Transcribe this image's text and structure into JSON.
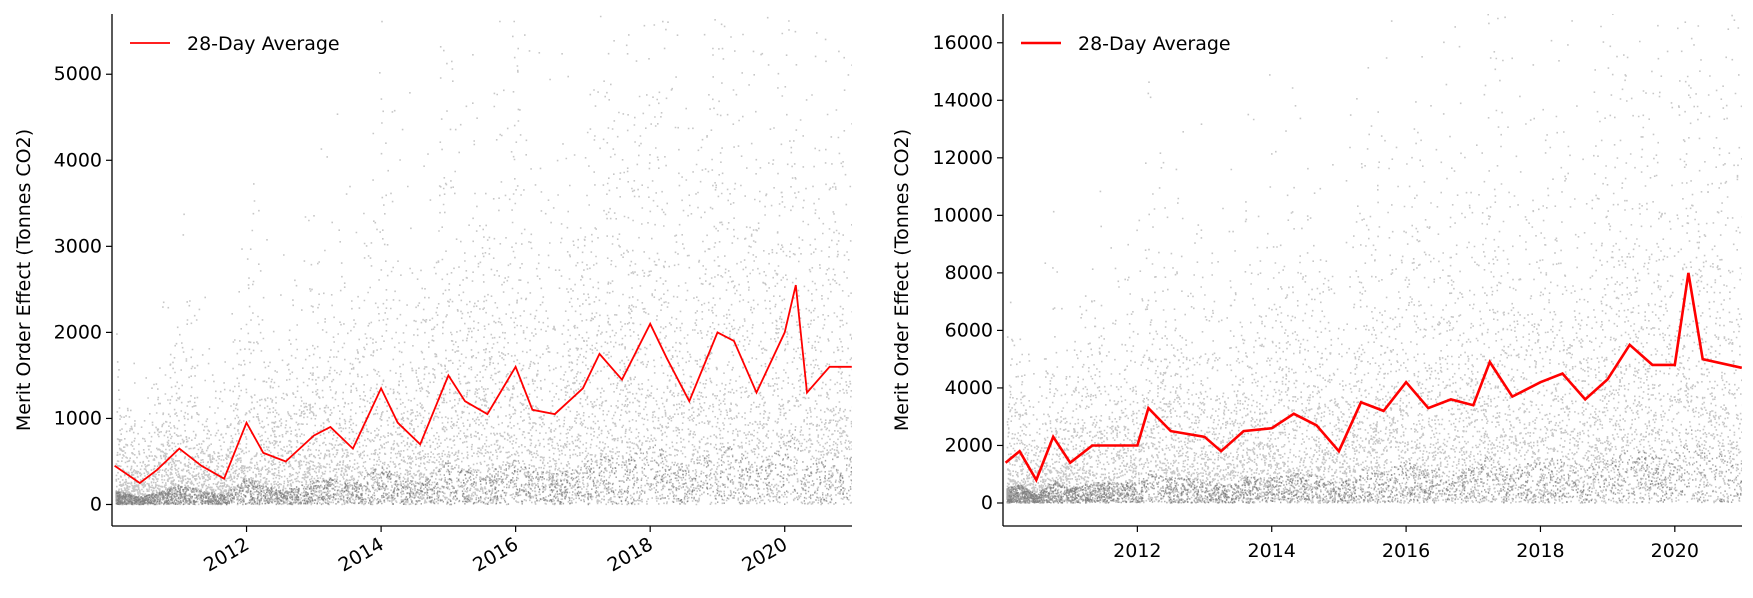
{
  "chart_data": [
    {
      "type": "scatter",
      "ylabel": "Merit Order Effect (Tonnes CO2)",
      "xlim": [
        "2010-01-01",
        "2021-01-01"
      ],
      "ylim": [
        -250,
        5700
      ],
      "xticks": [
        "2012",
        "2014",
        "2016",
        "2018",
        "2020"
      ],
      "yticks": [
        0,
        1000,
        2000,
        3000,
        4000,
        5000
      ],
      "x_tick_labels_rotated": true,
      "legend": {
        "placement": "top-left",
        "label": "28-Day Average"
      },
      "colors": {
        "scatter": "#000000",
        "average": "#ff0000"
      },
      "series": [
        {
          "name": "28-Day Average",
          "x": [
            "2010-01-15",
            "2010-06-01",
            "2010-09-01",
            "2011-01-01",
            "2011-05-01",
            "2011-09-01",
            "2012-01-01",
            "2012-04-01",
            "2012-08-01",
            "2013-01-01",
            "2013-04-01",
            "2013-08-01",
            "2014-01-01",
            "2014-04-01",
            "2014-08-01",
            "2015-01-01",
            "2015-04-01",
            "2015-08-01",
            "2016-01-01",
            "2016-04-01",
            "2016-08-01",
            "2017-01-01",
            "2017-04-01",
            "2017-08-01",
            "2018-01-01",
            "2018-04-01",
            "2018-08-01",
            "2019-01-01",
            "2019-04-01",
            "2019-08-01",
            "2020-01-01",
            "2020-03-01",
            "2020-05-01",
            "2020-09-01",
            "2020-12-31"
          ],
          "y": [
            450,
            250,
            400,
            650,
            450,
            300,
            950,
            600,
            500,
            800,
            900,
            650,
            1350,
            950,
            700,
            1500,
            1200,
            1050,
            1600,
            1100,
            1050,
            1350,
            1750,
            1450,
            2100,
            1700,
            1200,
            2000,
            1900,
            1300,
            2000,
            2550,
            1300,
            1600,
            1600
          ]
        }
      ]
    },
    {
      "type": "scatter",
      "ylabel": "Merit Order Effect (Tonnes CO2)",
      "xlim": [
        "2010-01-01",
        "2021-01-01"
      ],
      "ylim": [
        -800,
        17000
      ],
      "xticks": [
        "2012",
        "2014",
        "2016",
        "2018",
        "2020"
      ],
      "yticks": [
        0,
        2000,
        4000,
        6000,
        8000,
        10000,
        12000,
        14000,
        16000
      ],
      "x_tick_labels_rotated": false,
      "legend": {
        "placement": "top-left",
        "label": "28-Day Average"
      },
      "colors": {
        "scatter": "#000000",
        "average": "#ff0000"
      },
      "series": [
        {
          "name": "28-Day Average",
          "x": [
            "2010-01-15",
            "2010-04-01",
            "2010-07-01",
            "2010-10-01",
            "2011-01-01",
            "2011-05-01",
            "2011-09-01",
            "2012-01-01",
            "2012-03-01",
            "2012-07-01",
            "2013-01-01",
            "2013-04-01",
            "2013-08-01",
            "2014-01-01",
            "2014-05-01",
            "2014-09-01",
            "2015-01-01",
            "2015-05-01",
            "2015-09-01",
            "2016-01-01",
            "2016-05-01",
            "2016-09-01",
            "2017-01-01",
            "2017-04-01",
            "2017-08-01",
            "2018-01-01",
            "2018-05-01",
            "2018-09-01",
            "2019-01-01",
            "2019-05-01",
            "2019-09-01",
            "2020-01-01",
            "2020-03-15",
            "2020-06-01",
            "2020-12-31"
          ],
          "y": [
            1400,
            1800,
            800,
            2300,
            1400,
            2000,
            2000,
            2000,
            3300,
            2500,
            2300,
            1800,
            2500,
            2600,
            3100,
            2700,
            1800,
            3500,
            3200,
            4200,
            3300,
            3600,
            3400,
            4900,
            3700,
            4200,
            4500,
            3600,
            4300,
            5500,
            4800,
            4800,
            8000,
            5000,
            4700
          ]
        }
      ]
    }
  ]
}
